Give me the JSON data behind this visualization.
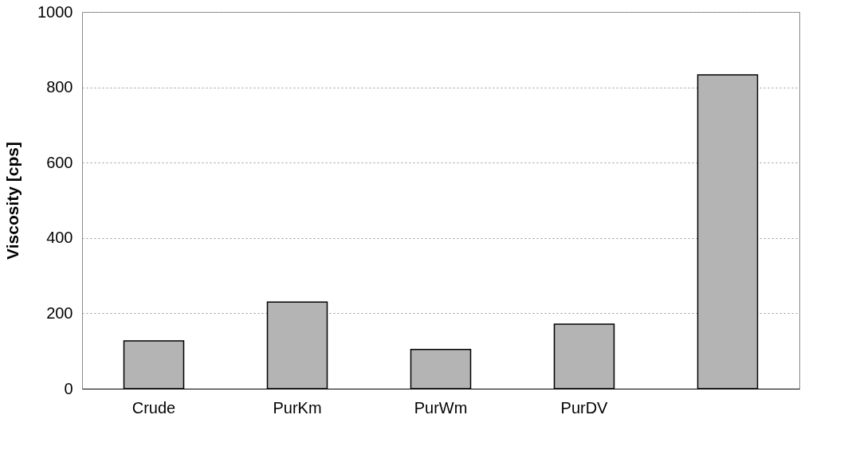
{
  "chart_data": {
    "type": "bar",
    "ylabel": "Viscosity [cps]",
    "categories": [
      "Crude",
      "PurKm",
      "PurWm",
      "PurDV",
      null
    ],
    "values": [
      127,
      230,
      104,
      171,
      833
    ],
    "color": "#b4b4b4",
    "ylim": [
      0,
      1000
    ],
    "yticks": [
      0,
      200,
      400,
      600,
      800,
      1000
    ],
    "grid": "y"
  }
}
